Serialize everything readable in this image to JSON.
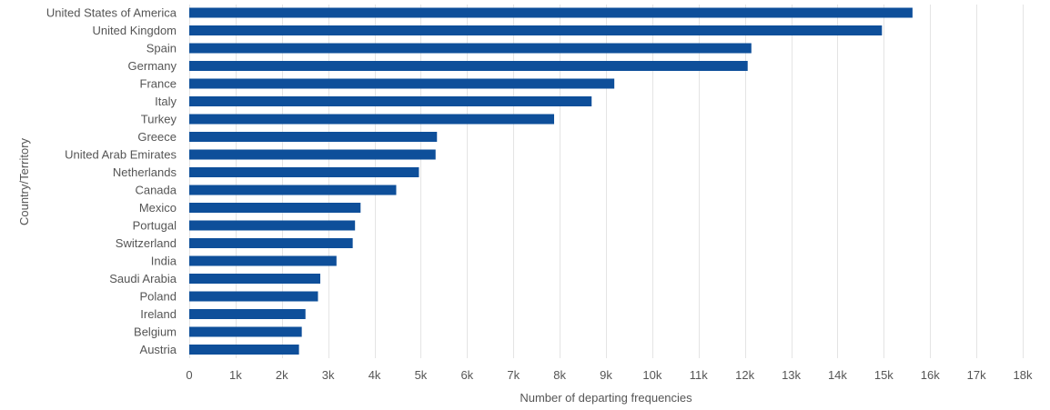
{
  "chart_data": {
    "type": "bar",
    "orientation": "horizontal",
    "title": "",
    "xlabel": "Number of departing frequencies",
    "ylabel": "Country/Territory",
    "xlim": [
      0,
      18000
    ],
    "x_ticks": [
      0,
      1000,
      2000,
      3000,
      4000,
      5000,
      6000,
      7000,
      8000,
      9000,
      10000,
      11000,
      12000,
      13000,
      14000,
      15000,
      16000,
      17000,
      18000
    ],
    "x_tick_labels": [
      "0",
      "1k",
      "2k",
      "3k",
      "4k",
      "5k",
      "6k",
      "7k",
      "8k",
      "9k",
      "10k",
      "11k",
      "12k",
      "13k",
      "14k",
      "15k",
      "16k",
      "17k",
      "18k"
    ],
    "grid": true,
    "legend": "none",
    "categories": [
      "United States of America",
      "United Kingdom",
      "Spain",
      "Germany",
      "France",
      "Italy",
      "Turkey",
      "Greece",
      "United Arab Emirates",
      "Netherlands",
      "Canada",
      "Mexico",
      "Portugal",
      "Switzerland",
      "India",
      "Saudi Arabia",
      "Poland",
      "Ireland",
      "Belgium",
      "Austria"
    ],
    "values": [
      15620,
      14960,
      12140,
      12060,
      9180,
      8690,
      7880,
      5350,
      5320,
      4960,
      4470,
      3700,
      3580,
      3530,
      3180,
      2830,
      2780,
      2510,
      2430,
      2370
    ]
  },
  "colors": {
    "bar": "#0e4f9a",
    "grid": "#e4e4e4",
    "text": "#555555"
  }
}
